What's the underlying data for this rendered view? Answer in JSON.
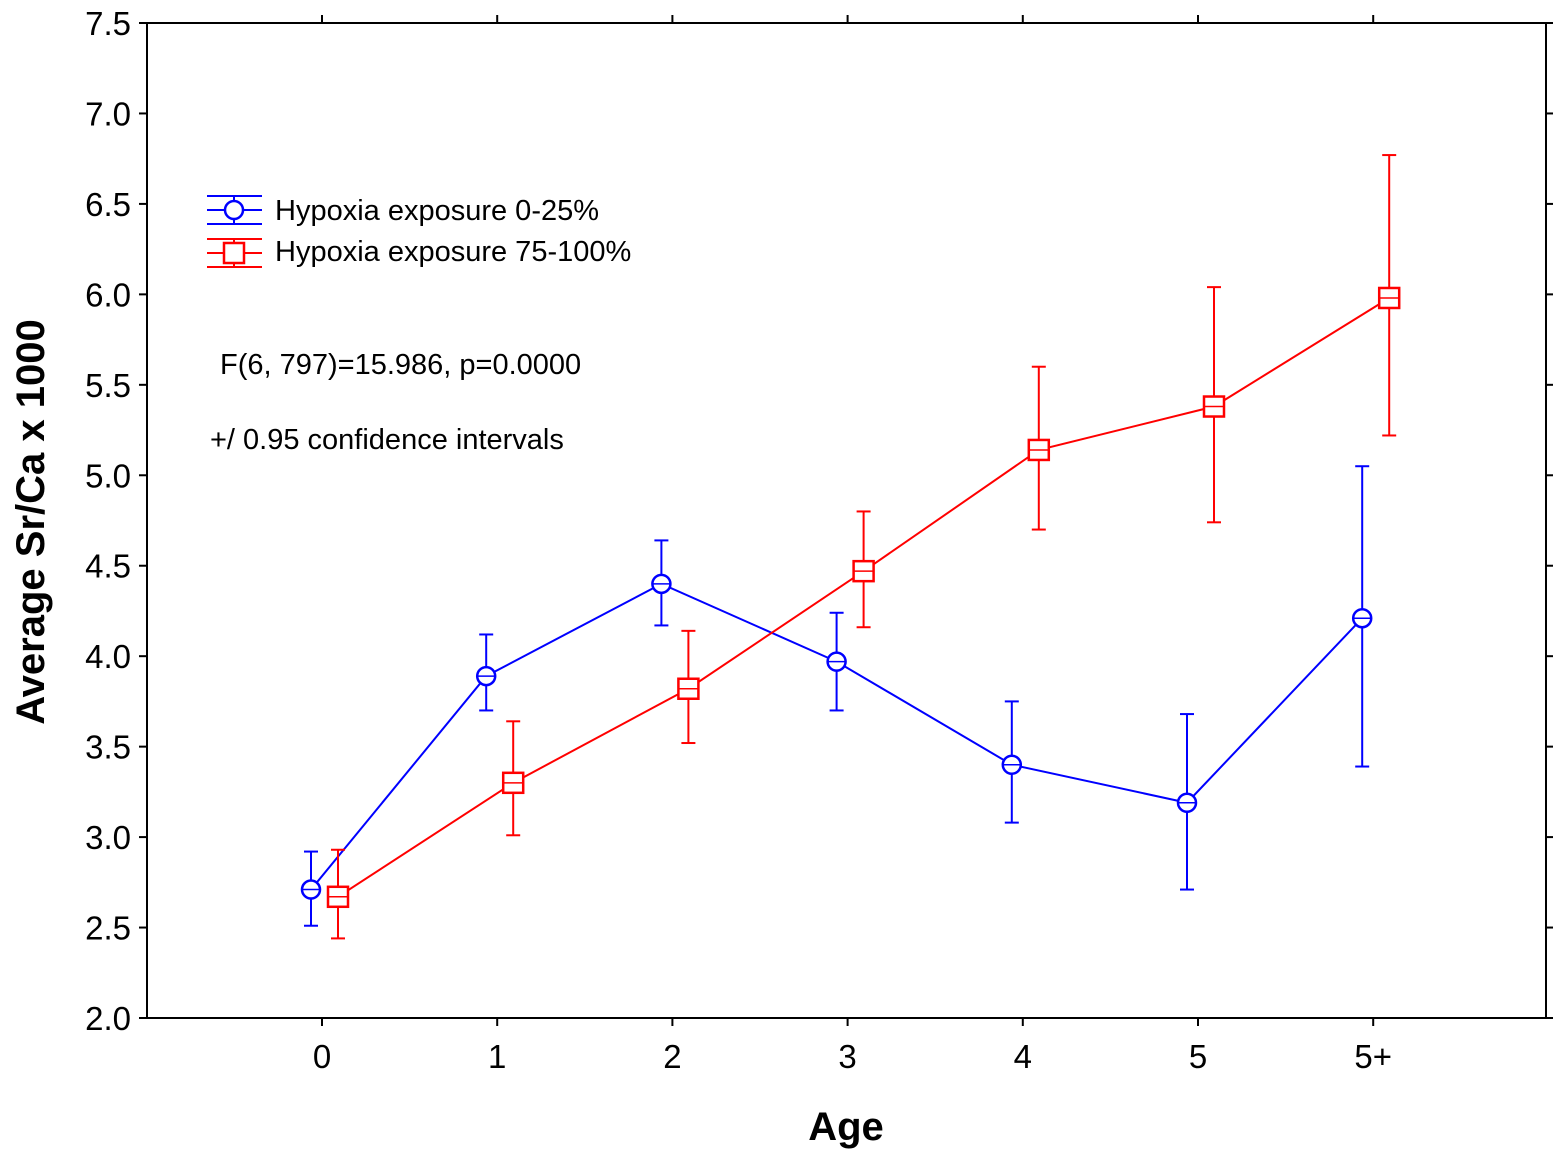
{
  "chart_data": {
    "type": "line",
    "title": "",
    "xlabel": "Age",
    "ylabel": "Average Sr/Ca x 1000",
    "categories": [
      "0",
      "1",
      "2",
      "3",
      "4",
      "5",
      "5+"
    ],
    "ylim": [
      2.0,
      7.5
    ],
    "yticks": [
      "2.0",
      "2.5",
      "3.0",
      "3.5",
      "4.0",
      "4.5",
      "5.0",
      "5.5",
      "6.0",
      "6.5",
      "7.0",
      "7.5"
    ],
    "grid": false,
    "legend_position": "top-left",
    "error_bars": "95% confidence intervals",
    "series": [
      {
        "name": "Hypoxia exposure 0-25%",
        "color": "#0000ff",
        "marker": "circle",
        "values": [
          2.71,
          3.89,
          4.4,
          3.97,
          3.4,
          3.19,
          4.21
        ],
        "ci_low": [
          2.51,
          3.7,
          4.17,
          3.7,
          3.08,
          2.71,
          3.39
        ],
        "ci_high": [
          2.92,
          4.12,
          4.64,
          4.24,
          3.75,
          3.68,
          5.05
        ]
      },
      {
        "name": "Hypoxia exposure 75-100%",
        "color": "#ff0000",
        "marker": "square",
        "values": [
          2.67,
          3.3,
          3.82,
          4.47,
          5.14,
          5.38,
          5.98
        ],
        "ci_low": [
          2.44,
          3.01,
          3.52,
          4.16,
          4.7,
          4.74,
          5.22
        ],
        "ci_high": [
          2.93,
          3.64,
          4.14,
          4.8,
          5.6,
          6.04,
          6.77
        ]
      }
    ],
    "annotations": [
      "F(6, 797)=15.986, p=0.0000",
      "+/ 0.95 confidence intervals"
    ]
  }
}
